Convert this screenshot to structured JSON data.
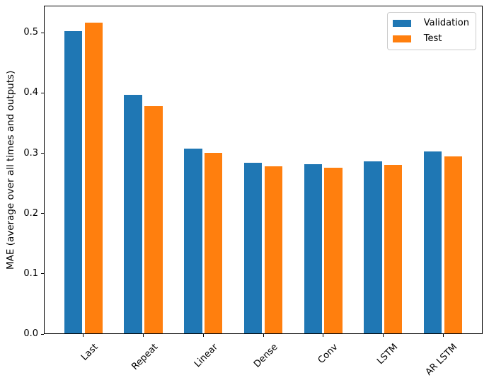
{
  "chart_data": {
    "type": "bar",
    "title": "",
    "xlabel": "",
    "ylabel": "MAE (average over all times and outputs)",
    "categories": [
      "Last",
      "Repeat",
      "Linear",
      "Dense",
      "Conv",
      "LSTM",
      "AR LSTM"
    ],
    "series": [
      {
        "name": "Validation",
        "color": "#1f77b4",
        "values": [
          0.502,
          0.396,
          0.306,
          0.283,
          0.281,
          0.286,
          0.302
        ]
      },
      {
        "name": "Test",
        "color": "#ff7f0e",
        "values": [
          0.516,
          0.377,
          0.299,
          0.277,
          0.275,
          0.279,
          0.294
        ]
      }
    ],
    "ylim": [
      0,
      0.545
    ],
    "yticks": [
      0.0,
      0.1,
      0.2,
      0.3,
      0.4,
      0.5
    ],
    "xlim": [
      -0.66,
      6.66
    ],
    "bar_width": 0.3,
    "bar_offset": 0.17,
    "grid": false,
    "legend_position": "upper right",
    "x_tick_label_rotation": 45,
    "background_color": "#ffffff",
    "spine_color": "#000000"
  }
}
